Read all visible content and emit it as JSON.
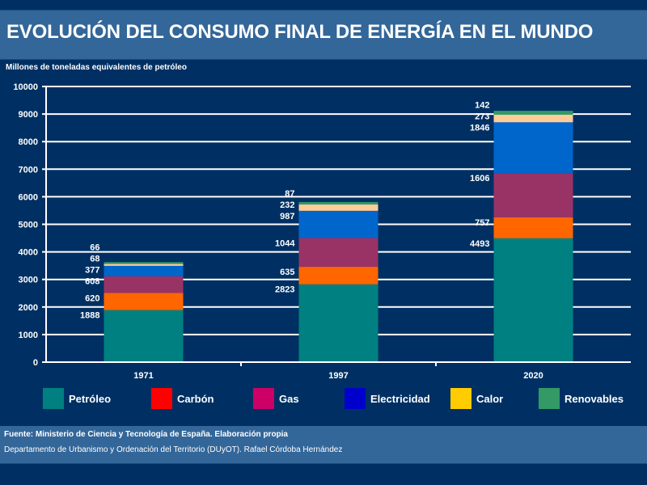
{
  "title": "EVOLUCIÓN DEL CONSUMO FINAL DE ENERGÍA EN EL MUNDO",
  "footer": {
    "source": "Fuente: Ministerio de Ciencia y Tecnología de España.  Elaboración propia",
    "credit": "Departamento de Urbanismo y Ordenación del Territorio (DUyOT). Rafael Córdoba Hernández"
  },
  "chart_data": {
    "type": "bar",
    "stacked": true,
    "ylabel": "Millones de toneladas equivalentes de petróleo",
    "ylim": [
      0,
      10000
    ],
    "yticks": [
      "0",
      "1000",
      "2000",
      "3000",
      "4000",
      "5000",
      "6000",
      "7000",
      "8000",
      "9000",
      "10000"
    ],
    "grid": true,
    "legend_position": "bottom",
    "categories": [
      "1971",
      "1997",
      "2020"
    ],
    "series": [
      {
        "name": "Petróleo",
        "values": [
          1888,
          2823,
          4493
        ],
        "bar_color": "#008080",
        "legend_color": "#008080"
      },
      {
        "name": "Carbón",
        "values": [
          620,
          635,
          757
        ],
        "bar_color": "#ff6600",
        "legend_color": "#ff0000"
      },
      {
        "name": "Gas",
        "values": [
          608,
          1044,
          1606
        ],
        "bar_color": "#993366",
        "legend_color": "#cc0066"
      },
      {
        "name": "Electricidad",
        "values": [
          377,
          987,
          1846
        ],
        "bar_color": "#0066cc",
        "legend_color": "#0000cc"
      },
      {
        "name": "Calor",
        "values": [
          68,
          232,
          273
        ],
        "bar_color": "#ffcc99",
        "legend_color": "#ffcc00"
      },
      {
        "name": "Renovables",
        "values": [
          66,
          87,
          142
        ],
        "bar_color": "#339966",
        "legend_color": "#339966"
      }
    ]
  }
}
